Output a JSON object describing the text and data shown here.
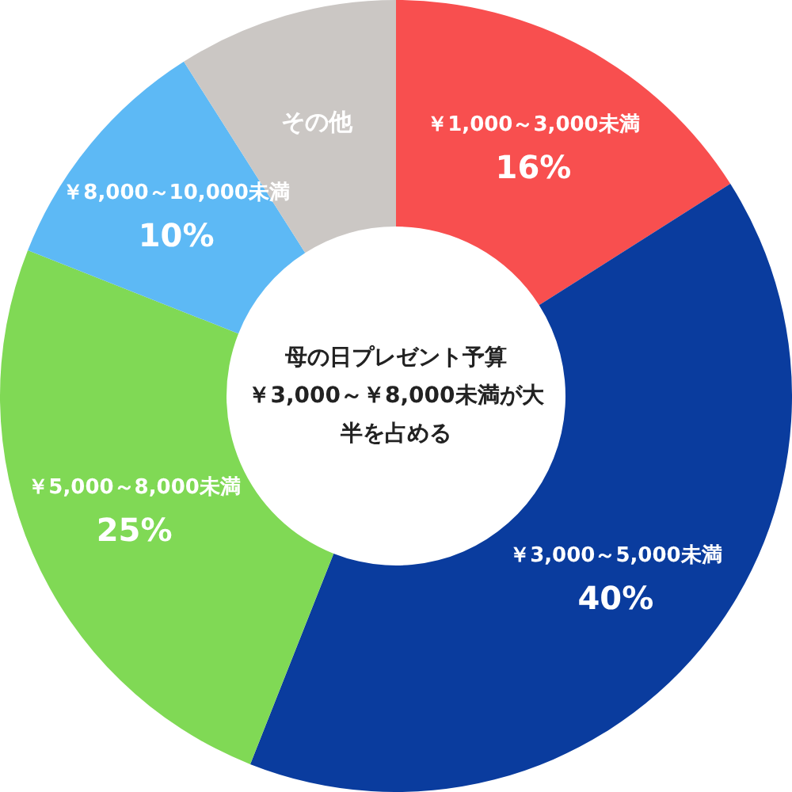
{
  "chart_data": {
    "type": "donut",
    "title": "母の日プレゼント予算",
    "subtitle": "￥3,000～￥8,000未満が大半を占める",
    "categories": [
      "￥1,000～3,000未満",
      "￥3,000～5,000未満",
      "￥5,000～8,000未満",
      "￥8,000～10,000未満",
      "その他"
    ],
    "values": [
      16,
      40,
      25,
      10,
      9
    ],
    "value_labels": [
      "16%",
      "40%",
      "25%",
      "10%",
      null
    ],
    "colors": [
      "#f84f4f",
      "#0a3c9e",
      "#80d955",
      "#5db9f5",
      "#cbc7c4"
    ]
  }
}
